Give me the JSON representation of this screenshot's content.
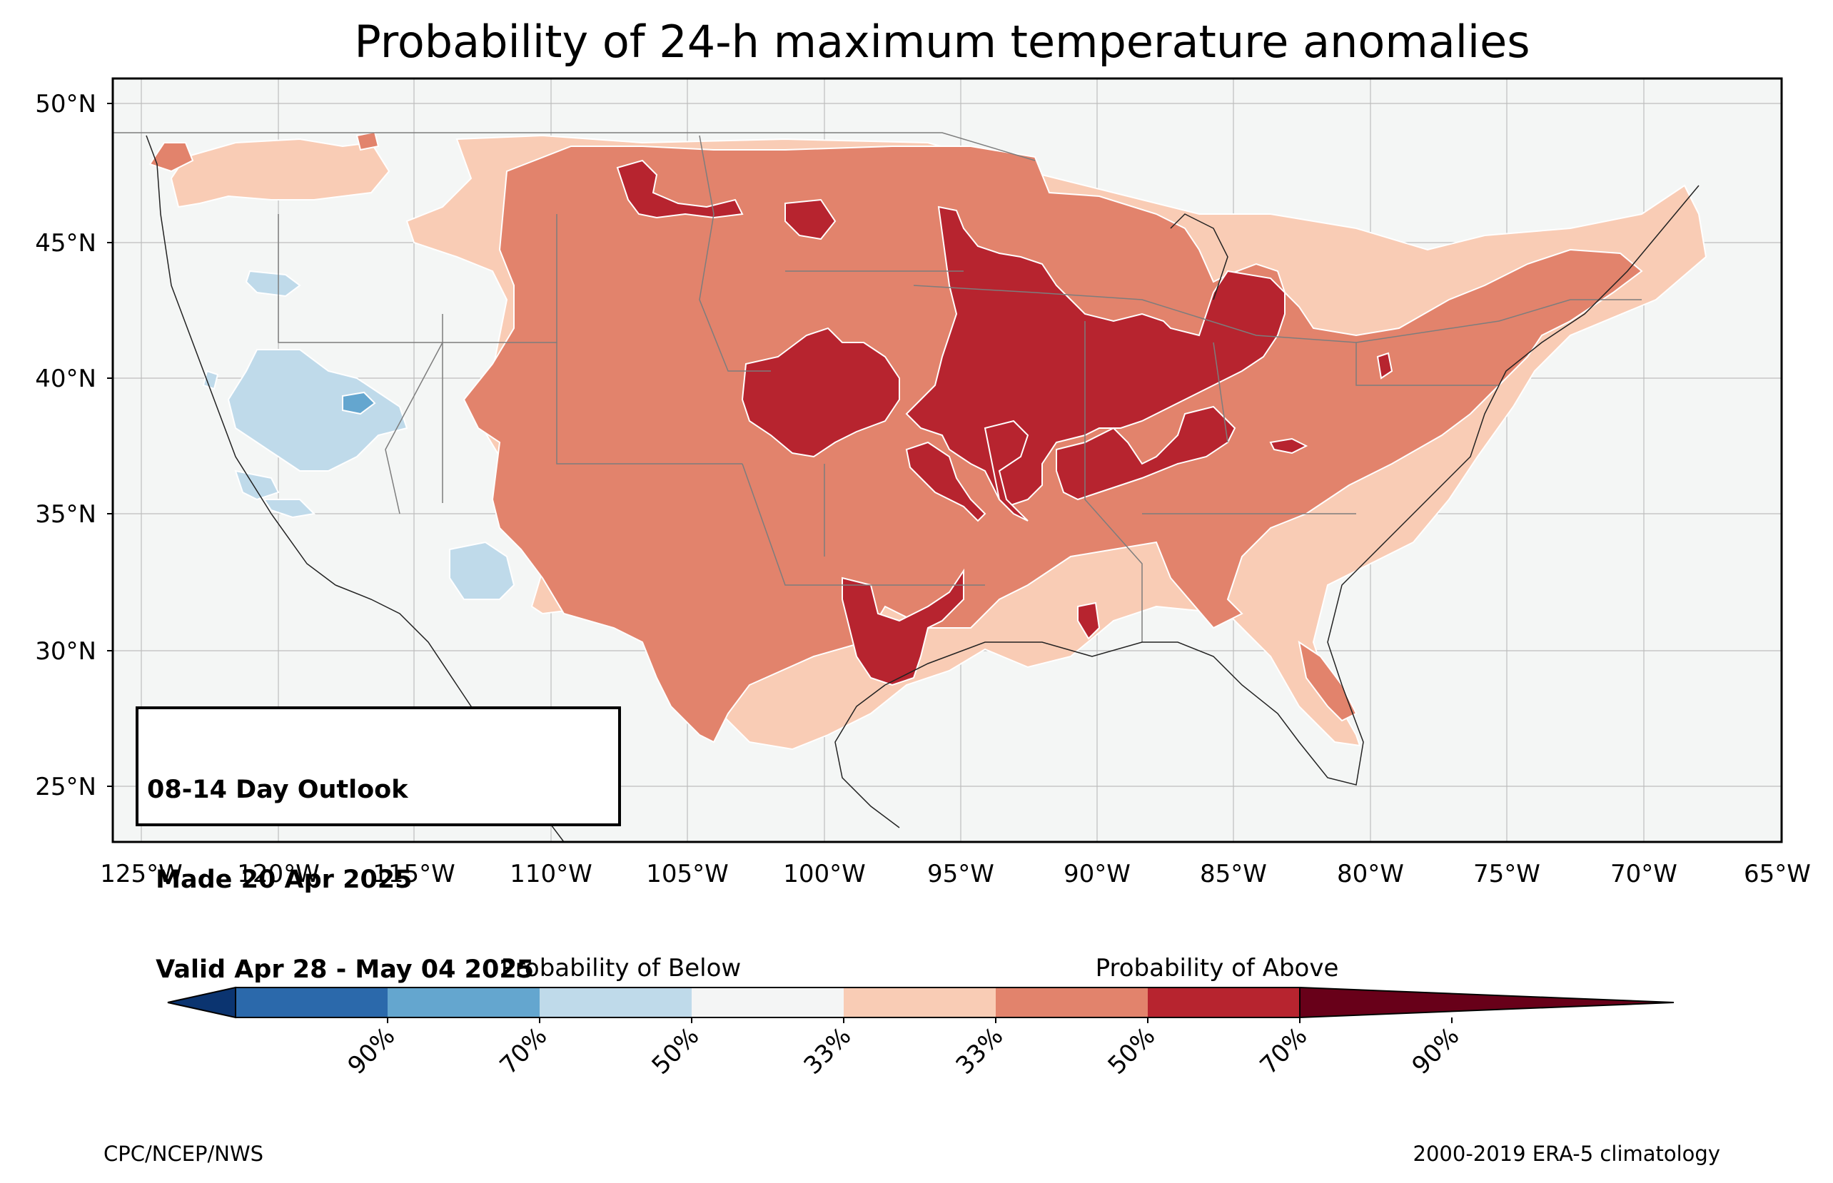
{
  "title": "Probability of 24-h maximum temperature anomalies",
  "lon_ticks": [
    "125°W",
    "120°W",
    "115°W",
    "110°W",
    "105°W",
    "100°W",
    "95°W",
    "90°W",
    "85°W",
    "80°W",
    "75°W",
    "70°W",
    "65°W"
  ],
  "lat_ticks": [
    "50°N",
    "45°N",
    "40°N",
    "35°N",
    "30°N",
    "25°N"
  ],
  "info_box": {
    "line1": "08-14 Day Outlook",
    "line2": " Made 20 Apr 2025",
    "line3": " Valid Apr 28 - May 04 2025"
  },
  "colorbar": {
    "below_label": "Probability of Below",
    "above_label": "Probability of Above",
    "ticks": [
      "90%",
      "70%",
      "50%",
      "33%",
      "33%",
      "50%",
      "70%",
      "90%"
    ],
    "colors": [
      "#053061",
      "#2166ac",
      "#4393c3",
      "#92c5de",
      "#f7f7f7",
      "#f4a582",
      "#d6604d",
      "#b2182b",
      "#67001f"
    ],
    "fill_colors": [
      "#0b3470",
      "#2b69ab",
      "#64a6cf",
      "#bfdaea",
      "#f4f5f5",
      "#f9ccb5",
      "#e2836c",
      "#b7242f",
      "#680019"
    ]
  },
  "credit_left": "CPC/NCEP/NWS",
  "credit_right": "2000-2019 ERA-5 climatology"
}
